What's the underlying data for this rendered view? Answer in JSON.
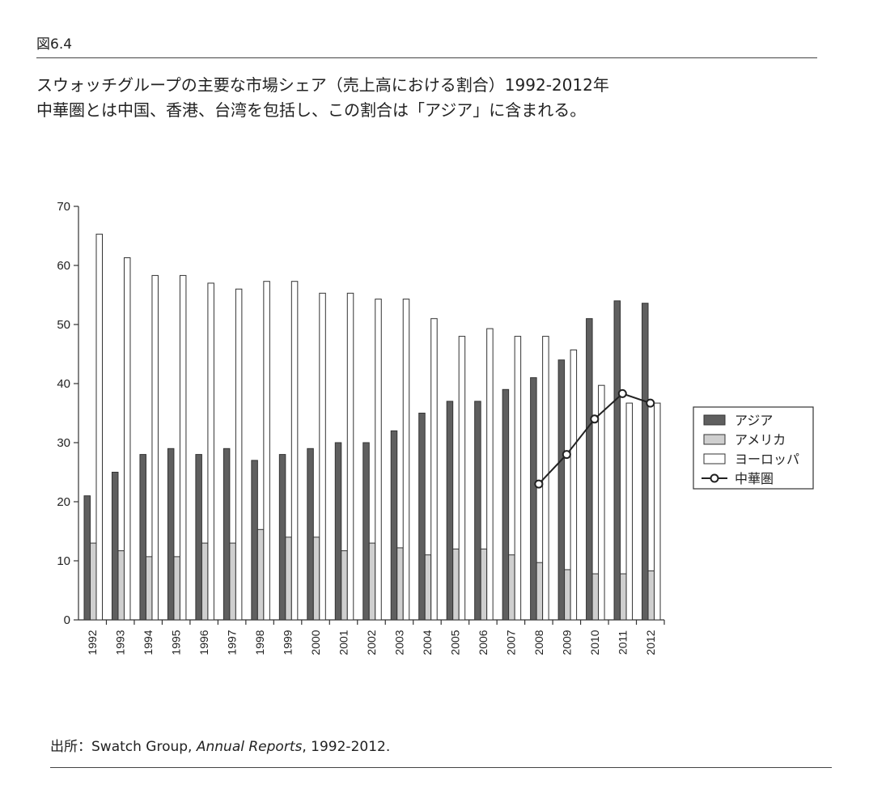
{
  "figure": {
    "label": "図6.4",
    "title_line1": "スウォッチグループの主要な市場シェア（売上高における割合）1992-2012年",
    "title_line2": "中華圏とは中国、香港、台湾を包括し、この割合は「アジア」に含まれる。"
  },
  "source": {
    "prefix": "出所：Swatch Group, ",
    "italic": "Annual Reports",
    "suffix": ", 1992-2012."
  },
  "chart_data": {
    "type": "bar",
    "categories": [
      "1992",
      "1993",
      "1994",
      "1995",
      "1996",
      "1997",
      "1998",
      "1999",
      "2000",
      "2001",
      "2002",
      "2003",
      "2004",
      "2005",
      "2006",
      "2007",
      "2008",
      "2009",
      "2010",
      "2011",
      "2012"
    ],
    "series": [
      {
        "name": "アジア",
        "color": "#5f5f5f",
        "values": [
          21,
          25,
          28,
          29,
          28,
          29,
          27,
          28,
          29,
          30,
          30,
          32,
          35,
          37,
          37,
          39,
          41,
          44,
          51,
          54,
          53.6
        ]
      },
      {
        "name": "アメリカ",
        "color": "#cfcfcf",
        "values": [
          13,
          11.7,
          10.7,
          10.7,
          13,
          13,
          15.3,
          14,
          14,
          11.7,
          13,
          12.2,
          11,
          12,
          12,
          11,
          9.7,
          8.5,
          7.8,
          7.8,
          8.3
        ]
      },
      {
        "name": "ヨーロッパ",
        "color": "#ffffff",
        "values": [
          65.3,
          61.3,
          58.3,
          58.3,
          57,
          56,
          57.3,
          57.3,
          55.3,
          55.3,
          54.3,
          54.3,
          51,
          48,
          49.3,
          48,
          48,
          45.7,
          39.7,
          36.7,
          36.7
        ]
      }
    ],
    "line_series": {
      "name": "中華圏",
      "x": [
        "2008",
        "2009",
        "2010",
        "2011",
        "2012"
      ],
      "values": [
        23,
        28,
        34,
        38.3,
        36.7
      ]
    },
    "ylim": [
      0,
      70
    ],
    "yticks": [
      0,
      10,
      20,
      30,
      40,
      50,
      60,
      70
    ],
    "legend_position": "right",
    "grid": false
  }
}
